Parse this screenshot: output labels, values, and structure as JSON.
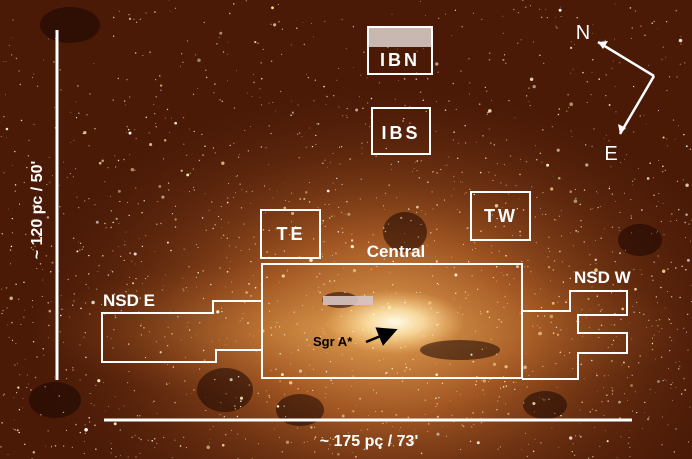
{
  "image": {
    "palette": {
      "background_dark": "#2a0d04",
      "background_mid": "#6b2a0c",
      "bulge_glow": "#d98a3c",
      "core_glow": "#fff6d8",
      "star_bright": "#fff3c0",
      "outline": "#ffffff"
    }
  },
  "regions": {
    "ibn": "IBN",
    "ibs": "IBS",
    "te": "TE",
    "tw": "TW",
    "central": "Central",
    "nsd_e": "NSD E",
    "nsd_w": "NSD W"
  },
  "markers": {
    "sgr_a": "Sgr A*"
  },
  "scale": {
    "vertical": "~ 120 pc / 50'",
    "horizontal": "~ 175 pc / 73'"
  },
  "compass": {
    "north": "N",
    "east": "E"
  }
}
